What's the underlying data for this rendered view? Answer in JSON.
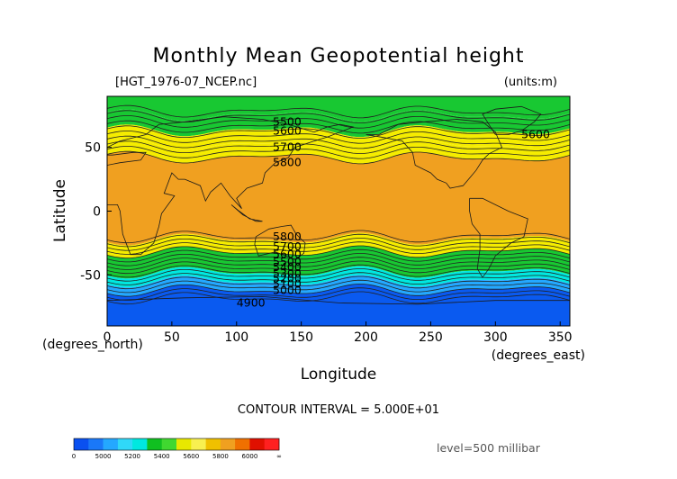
{
  "chart_data": {
    "type": "contour-map",
    "title": "Monthly Mean Geopotential height",
    "file_label": "[HGT_1976-07_NCEP.nc]",
    "units_label": "(units:m)",
    "xlabel": "Longitude",
    "ylabel": "Latitude",
    "x_units": "(degrees_east)",
    "y_units": "(degrees_north)",
    "xlim": [
      0,
      357.5
    ],
    "ylim": [
      -90,
      90
    ],
    "x_ticks": [
      0,
      50,
      100,
      150,
      200,
      250,
      300,
      350
    ],
    "y_ticks": [
      -50,
      0,
      50
    ],
    "contour_interval": "CONTOUR INTERVAL = 5.000E+01",
    "level": "level=500 millibar",
    "contour_labels": [
      {
        "text": "5500",
        "lon": 128,
        "lat": 70
      },
      {
        "text": "5600",
        "lon": 128,
        "lat": 63
      },
      {
        "text": "5600",
        "lon": 320,
        "lat": 60
      },
      {
        "text": "5700",
        "lon": 128,
        "lat": 50
      },
      {
        "text": "5800",
        "lon": 128,
        "lat": 38
      },
      {
        "text": "5800",
        "lon": 128,
        "lat": -20
      },
      {
        "text": "5700",
        "lon": 128,
        "lat": -28
      },
      {
        "text": "5600",
        "lon": 128,
        "lat": -34
      },
      {
        "text": "5500",
        "lon": 128,
        "lat": -40
      },
      {
        "text": "5400",
        "lon": 128,
        "lat": -44
      },
      {
        "text": "5300",
        "lon": 128,
        "lat": -49
      },
      {
        "text": "5200",
        "lon": 128,
        "lat": -53
      },
      {
        "text": "5100",
        "lon": 128,
        "lat": -57
      },
      {
        "text": "5000",
        "lon": 128,
        "lat": -62
      },
      {
        "text": "4900",
        "lon": 100,
        "lat": -72
      }
    ],
    "colorbar": {
      "labels": [
        "0",
        "5000",
        "5200",
        "5400",
        "5600",
        "5800",
        "6000",
        "∞"
      ],
      "colors": [
        "#0a50f0",
        "#1a78f8",
        "#24a8ff",
        "#30d8f8",
        "#00e8e0",
        "#10c020",
        "#40d830",
        "#e8e800",
        "#f8f050",
        "#f0c000",
        "#f0a020",
        "#f07000",
        "#e01000",
        "#ff2020"
      ]
    },
    "bands": [
      {
        "from": 90,
        "to": 75,
        "color": "#18c832"
      },
      {
        "from": 75,
        "to": 63,
        "color": "#18c832"
      },
      {
        "from": 63,
        "to": 52,
        "color": "#f5ec00"
      },
      {
        "from": 52,
        "to": 42,
        "color": "#f5ec00"
      },
      {
        "from": 42,
        "to": -22,
        "color": "#f0a020"
      },
      {
        "from": -22,
        "to": -32,
        "color": "#f5ec00"
      },
      {
        "from": -32,
        "to": -41,
        "color": "#18c832"
      },
      {
        "from": -41,
        "to": -48,
        "color": "#18c832"
      },
      {
        "from": -48,
        "to": -55,
        "color": "#00e8e0"
      },
      {
        "from": -55,
        "to": -62,
        "color": "#24a8ff"
      },
      {
        "from": -62,
        "to": -90,
        "color": "#0a5af0"
      }
    ]
  }
}
